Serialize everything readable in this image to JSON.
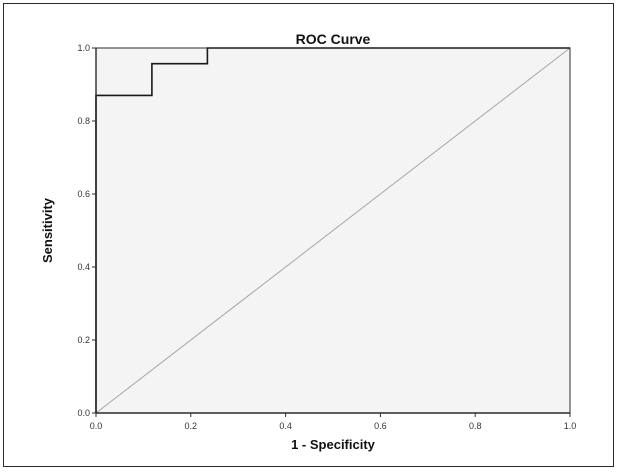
{
  "chart_data": {
    "type": "line",
    "title": "ROC Curve",
    "xlabel": "1 - Specificity",
    "ylabel": "Sensitivity",
    "xlim": [
      0.0,
      1.0
    ],
    "ylim": [
      0.0,
      1.0
    ],
    "x_ticks": [
      "0.0",
      "0.2",
      "0.4",
      "0.6",
      "0.8",
      "1.0"
    ],
    "y_ticks": [
      "0.0",
      "0.2",
      "0.4",
      "0.6",
      "0.8",
      "1.0"
    ],
    "grid": false,
    "legend": "none",
    "series": [
      {
        "x": [
          0.0,
          0.0,
          0.118,
          0.118,
          0.235,
          0.235,
          1.0
        ],
        "y": [
          0.0,
          0.87,
          0.87,
          0.957,
          0.957,
          1.0,
          1.0
        ]
      }
    ],
    "colors": {
      "plot_background": "#f4f4f4",
      "curve": "#1a1a1a",
      "reference_line": "#a6a6a6",
      "axis": "#2b2b2b"
    }
  }
}
